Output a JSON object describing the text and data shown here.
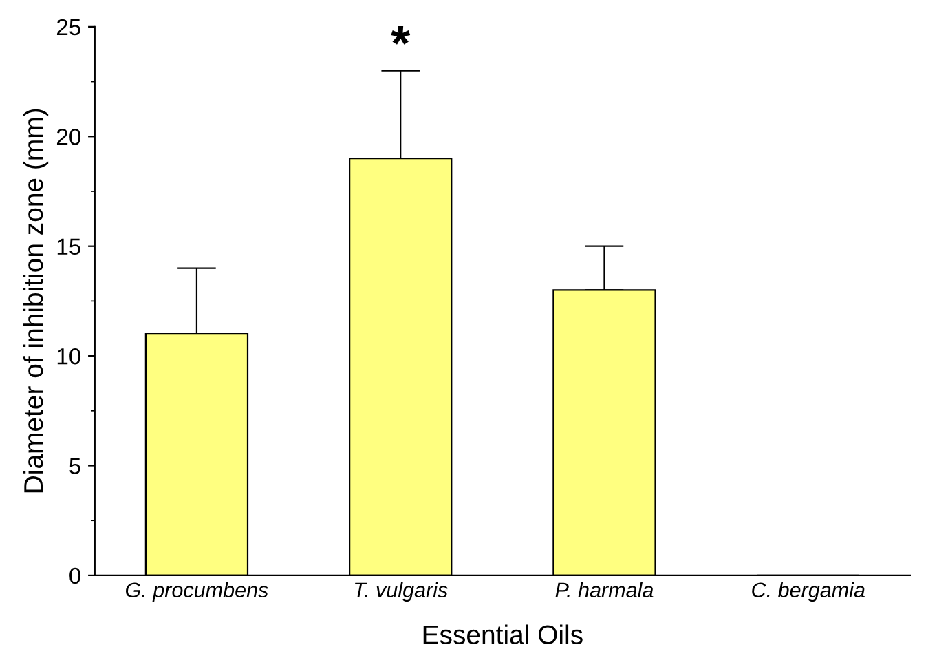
{
  "chart_data": {
    "type": "bar",
    "xlabel": "Essential Oils",
    "ylabel": "Diameter of inhibition zone (mm)",
    "categories": [
      "G. procumbens",
      "T. vulgaris",
      "P. harmala",
      "C. bergamia"
    ],
    "values": [
      11,
      19,
      13,
      0
    ],
    "errors": [
      [
        11,
        14
      ],
      [
        19,
        23
      ],
      [
        13,
        15
      ],
      null
    ],
    "color": "#ffff80",
    "ylim": [
      0,
      25
    ],
    "yticks": [
      0,
      5,
      10,
      15,
      20,
      25
    ],
    "grid": false,
    "legend": false,
    "annotations": [
      "*"
    ]
  }
}
